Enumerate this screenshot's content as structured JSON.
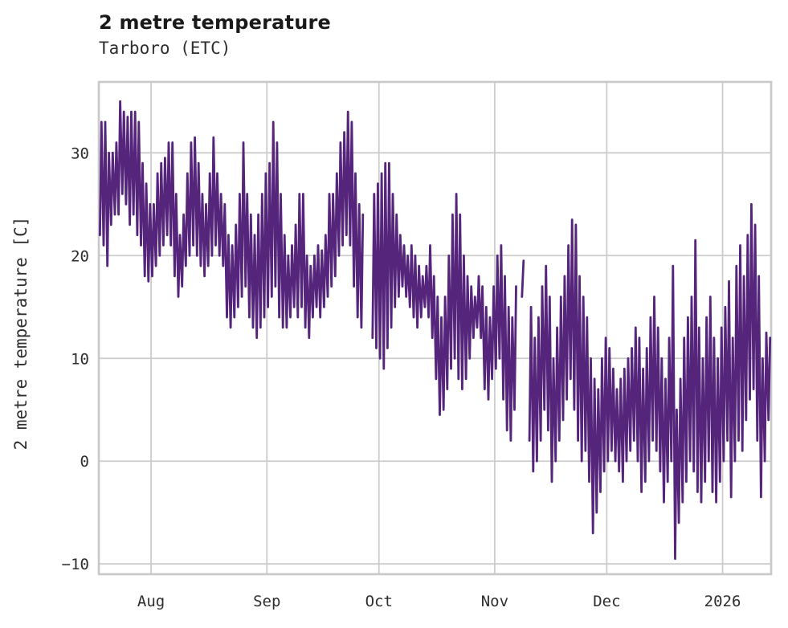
{
  "header": {
    "title": "2 metre temperature",
    "subtitle": "Tarboro (ETC)"
  },
  "chart_data": {
    "type": "line",
    "title": "2 metre temperature",
    "subtitle": "Tarboro (ETC)",
    "xlabel": "",
    "ylabel": "2 metre temperature [C]",
    "line_color": "#55247b",
    "grid_color": "#cccccc",
    "spine_color": "#c9c9c9",
    "background": "#ffffff",
    "grid": true,
    "legend": false,
    "ylim": [
      -11.0,
      36.9
    ],
    "y_ticks": [
      {
        "label": "−10",
        "value": -10
      },
      {
        "label": "0",
        "value": 0
      },
      {
        "label": "10",
        "value": 10
      },
      {
        "label": "20",
        "value": 20
      },
      {
        "label": "30",
        "value": 30
      }
    ],
    "x_ticks": [
      {
        "label": "Aug",
        "day": 14
      },
      {
        "label": "Sep",
        "day": 45
      },
      {
        "label": "Oct",
        "day": 75
      },
      {
        "label": "Nov",
        "day": 106
      },
      {
        "label": "Dec",
        "day": 136
      },
      {
        "label": "2026",
        "day": 167
      }
    ],
    "start_date": "2025-07-18",
    "end_date": "2026-01-14",
    "total_days": 180,
    "sampling": "daily [min,max] pairs; plotted line oscillates diurnally between them; null = data gap",
    "gaps": [
      "2025-09-27",
      "2025-09-28",
      "2025-11-07",
      "2025-11-09"
    ],
    "daily_min_max": [
      [
        22,
        33
      ],
      [
        21,
        33
      ],
      [
        19,
        30
      ],
      [
        23,
        30
      ],
      [
        24,
        31
      ],
      [
        24,
        35
      ],
      [
        26,
        34
      ],
      [
        25,
        33.5
      ],
      [
        23,
        34
      ],
      [
        24,
        34
      ],
      [
        22,
        33
      ],
      [
        21,
        29
      ],
      [
        18,
        27
      ],
      [
        17.5,
        25
      ],
      [
        18,
        25
      ],
      [
        19,
        28
      ],
      [
        20,
        29
      ],
      [
        21,
        29.5
      ],
      [
        22,
        31
      ],
      [
        21,
        31
      ],
      [
        18,
        26
      ],
      [
        16,
        22
      ],
      [
        17,
        24
      ],
      [
        19,
        28
      ],
      [
        20,
        31
      ],
      [
        21,
        31.5
      ],
      [
        20,
        29
      ],
      [
        19,
        26
      ],
      [
        18,
        25
      ],
      [
        19,
        28
      ],
      [
        20,
        31.5
      ],
      [
        21,
        28
      ],
      [
        20,
        26
      ],
      [
        19,
        25
      ],
      [
        14,
        22
      ],
      [
        13,
        21
      ],
      [
        14,
        23
      ],
      [
        15,
        26
      ],
      [
        16,
        31
      ],
      [
        17,
        26
      ],
      [
        14,
        24
      ],
      [
        13,
        22
      ],
      [
        12,
        24
      ],
      [
        13,
        26
      ],
      [
        14,
        28
      ],
      [
        15,
        29
      ],
      [
        16,
        33
      ],
      [
        17,
        31
      ],
      [
        14,
        26
      ],
      [
        13,
        22
      ],
      [
        13,
        20
      ],
      [
        14,
        21
      ],
      [
        15,
        23
      ],
      [
        14,
        26
      ],
      [
        15,
        26
      ],
      [
        13,
        20
      ],
      [
        12,
        19
      ],
      [
        14,
        20
      ],
      [
        15,
        21
      ],
      [
        14,
        20.5
      ],
      [
        15,
        22
      ],
      [
        16,
        26
      ],
      [
        17,
        26
      ],
      [
        18,
        28
      ],
      [
        20,
        31
      ],
      [
        21,
        32
      ],
      [
        22,
        34
      ],
      [
        21,
        33
      ],
      [
        17,
        28
      ],
      [
        14,
        25
      ],
      [
        13,
        24
      ],
      null,
      null,
      [
        12,
        26
      ],
      [
        11,
        27
      ],
      [
        10,
        28
      ],
      [
        9,
        29
      ],
      [
        11,
        29
      ],
      [
        13,
        26
      ],
      [
        15,
        24
      ],
      [
        16,
        22
      ],
      [
        17,
        21
      ],
      [
        16,
        20
      ],
      [
        15,
        21
      ],
      [
        14,
        20
      ],
      [
        13,
        19
      ],
      [
        14,
        18
      ],
      [
        15,
        19
      ],
      [
        14,
        21
      ],
      [
        12,
        18
      ],
      [
        8,
        16
      ],
      [
        4.5,
        14
      ],
      [
        5,
        16
      ],
      [
        7,
        20
      ],
      [
        9,
        24
      ],
      [
        10,
        26
      ],
      [
        8,
        24
      ],
      [
        7,
        20
      ],
      [
        8,
        18
      ],
      [
        10,
        17
      ],
      [
        12,
        16
      ],
      [
        13,
        18
      ],
      [
        12,
        17
      ],
      [
        7,
        15
      ],
      [
        6,
        14
      ],
      [
        8,
        17
      ],
      [
        9,
        20
      ],
      [
        10,
        21
      ],
      [
        6,
        18
      ],
      [
        3,
        15
      ],
      [
        2,
        14
      ],
      [
        5,
        17
      ],
      null,
      [
        16,
        19.5
      ],
      null,
      [
        2,
        15
      ],
      [
        -1,
        12
      ],
      [
        0,
        14
      ],
      [
        2,
        17
      ],
      [
        5,
        19
      ],
      [
        3,
        16
      ],
      [
        -2,
        10
      ],
      [
        0,
        13
      ],
      [
        2,
        16
      ],
      [
        4,
        18
      ],
      [
        6,
        21
      ],
      [
        8,
        23.5
      ],
      [
        5,
        23
      ],
      [
        2,
        18
      ],
      [
        0,
        16
      ],
      [
        1,
        14
      ],
      [
        -2,
        10
      ],
      [
        -7,
        8
      ],
      [
        -5,
        7
      ],
      [
        -3,
        10
      ],
      [
        -1,
        12
      ],
      [
        0,
        11
      ],
      [
        1,
        9
      ],
      [
        0,
        7
      ],
      [
        -1,
        8
      ],
      [
        -2,
        9
      ],
      [
        0,
        10
      ],
      [
        1,
        11
      ],
      [
        2,
        13
      ],
      [
        0,
        12
      ],
      [
        -3,
        9
      ],
      [
        -2,
        11
      ],
      [
        0,
        14
      ],
      [
        2,
        16
      ],
      [
        1,
        13
      ],
      [
        -1,
        10
      ],
      [
        -4,
        8
      ],
      [
        -2,
        12
      ],
      [
        0,
        19
      ],
      [
        -9.5,
        5
      ],
      [
        -6,
        8
      ],
      [
        -4,
        12
      ],
      [
        -2,
        14
      ],
      [
        0,
        16
      ],
      [
        -1,
        21.5
      ],
      [
        -3,
        13
      ],
      [
        -4,
        10
      ],
      [
        -2,
        14
      ],
      [
        0,
        16
      ],
      [
        -3,
        12
      ],
      [
        -4,
        10
      ],
      [
        -2,
        13
      ],
      [
        0,
        15
      ],
      [
        2,
        17.5
      ],
      [
        -3.5,
        12
      ],
      [
        0,
        19
      ],
      [
        2,
        21
      ],
      [
        1,
        18
      ],
      [
        4,
        22
      ],
      [
        6,
        25
      ],
      [
        7,
        23
      ],
      [
        2,
        18
      ],
      [
        -3.5,
        10
      ],
      [
        0,
        12.5
      ],
      [
        4,
        12
      ]
    ]
  }
}
